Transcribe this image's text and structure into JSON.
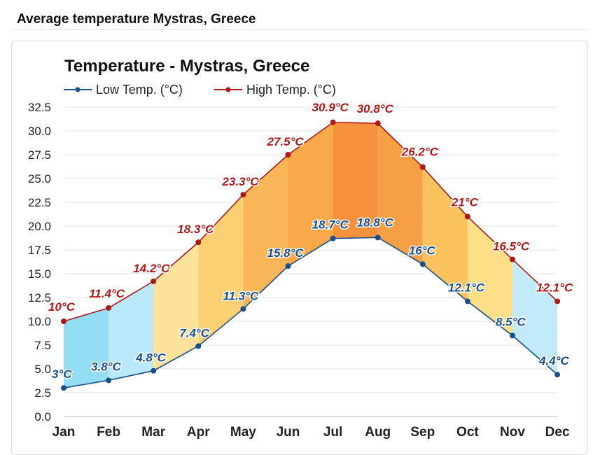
{
  "page": {
    "title": "Average temperature Mystras, Greece"
  },
  "chart_data": {
    "type": "line",
    "title": "Temperature - Mystras, Greece",
    "categories": [
      "Jan",
      "Feb",
      "Mar",
      "Apr",
      "May",
      "Jun",
      "Jul",
      "Aug",
      "Sep",
      "Oct",
      "Nov",
      "Dec"
    ],
    "series": [
      {
        "name": "Low Temp. (°C)",
        "color": "#1a4f8a",
        "values": [
          3,
          3.8,
          4.8,
          7.4,
          11.3,
          15.8,
          18.7,
          18.8,
          16,
          12.1,
          8.5,
          4.4
        ],
        "labels": [
          "3°C",
          "3.8°C",
          "4.8°C",
          "7.4°C",
          "11.3°C",
          "15.8°C",
          "18.7°C",
          "18.8°C",
          "16°C",
          "12.1°C",
          "8.5°C",
          "4.4°C"
        ]
      },
      {
        "name": "High Temp. (°C)",
        "color": "#b01818",
        "values": [
          10,
          11.4,
          14.2,
          18.3,
          23.3,
          27.5,
          30.9,
          30.8,
          26.2,
          21,
          16.5,
          12.1
        ],
        "labels": [
          "10°C",
          "11.4°C",
          "14.2°C",
          "18.3°C",
          "23.3°C",
          "27.5°C",
          "30.9°C",
          "30.8°C",
          "26.2°C",
          "21°C",
          "16.5°C",
          "12.1°C"
        ]
      }
    ],
    "yticks": [
      "0.0",
      "2.5",
      "5.0",
      "7.5",
      "10.0",
      "12.5",
      "15.0",
      "17.5",
      "20.0",
      "22.5",
      "25.0",
      "27.5",
      "30.0",
      "32.5"
    ],
    "ylim": [
      0,
      32.5
    ],
    "grid": true,
    "legend": "top-left",
    "band_colors": [
      "#93ddf5",
      "#b8e8fa",
      "#fde39a",
      "#fbd072",
      "#f8b656",
      "#f9a84a",
      "#f6913c",
      "#f79f44",
      "#fbc25e",
      "#fddf88",
      "#c2ebfa",
      "#a5e2f8"
    ]
  }
}
